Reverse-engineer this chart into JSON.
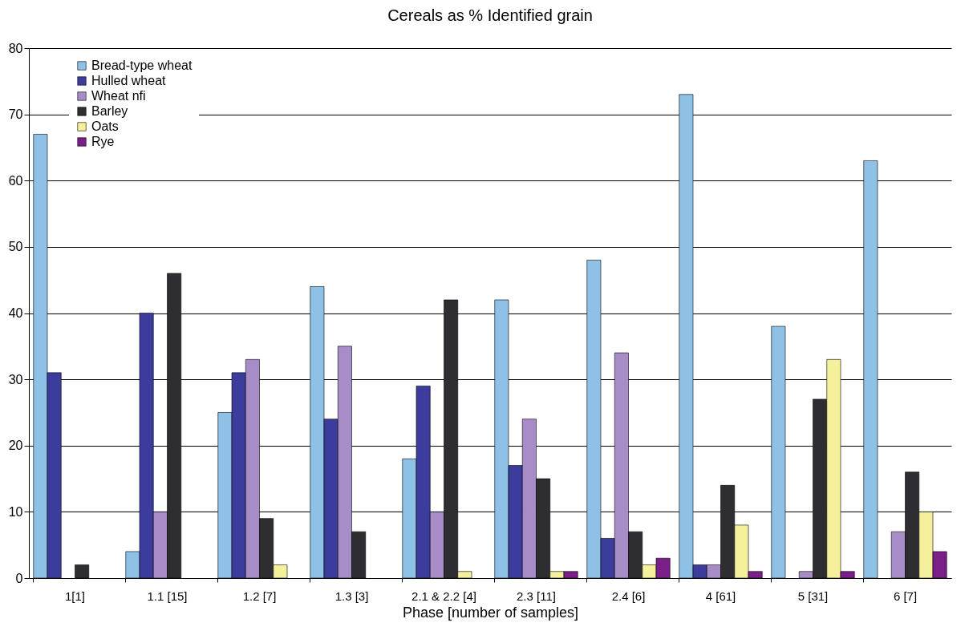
{
  "chart_data": {
    "type": "bar",
    "title": "Cereals as % Identified grain",
    "xlabel": "Phase [number of samples]",
    "categories": [
      "1[1]",
      "1.1 [15]",
      "1.2 [7]",
      "1.3 [3]",
      "2.1 & 2.2 [4]",
      "2.3 [11]",
      "2.4 [6]",
      "4 [61]",
      "5 [31]",
      "6 [7]"
    ],
    "series": [
      {
        "name": "Bread-type wheat",
        "color": "#8fc0e6",
        "values": [
          67,
          4,
          25,
          44,
          18,
          42,
          48,
          73,
          38,
          63
        ]
      },
      {
        "name": "Hulled wheat",
        "color": "#3c3c9c",
        "values": [
          31,
          40,
          31,
          24,
          29,
          17,
          6,
          2,
          null,
          null
        ]
      },
      {
        "name": "Wheat nfi",
        "color": "#a88cc8",
        "values": [
          null,
          10,
          33,
          35,
          10,
          24,
          34,
          2,
          1,
          7
        ]
      },
      {
        "name": "Barley",
        "color": "#2e2e32",
        "values": [
          2,
          46,
          9,
          7,
          42,
          15,
          7,
          14,
          27,
          16
        ]
      },
      {
        "name": "Oats",
        "color": "#f4f09c",
        "values": [
          null,
          null,
          2,
          null,
          1,
          1,
          2,
          8,
          33,
          10
        ]
      },
      {
        "name": "Rye",
        "color": "#7a1e8a",
        "values": [
          null,
          null,
          null,
          null,
          null,
          1,
          3,
          1,
          1,
          4
        ]
      }
    ],
    "ylim": [
      0,
      80
    ],
    "yticks": [
      0,
      10,
      20,
      30,
      40,
      50,
      60,
      70,
      80
    ],
    "grid": "y",
    "legend": "top left"
  }
}
